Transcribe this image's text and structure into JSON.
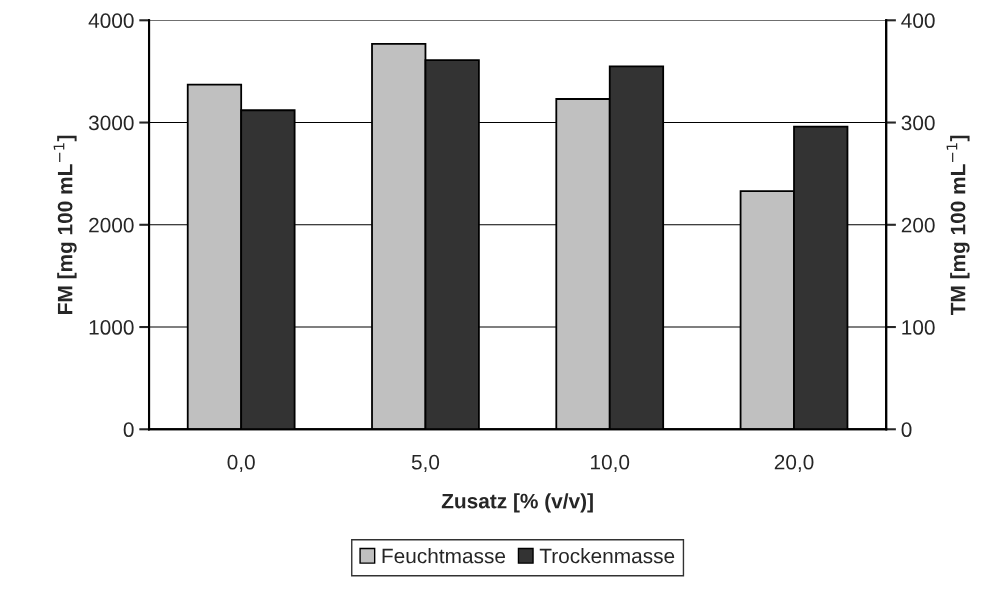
{
  "chart_data": {
    "type": "bar",
    "categories": [
      "0,0",
      "5,0",
      "10,0",
      "20,0"
    ],
    "xlabel": "Zusatz [% (v/v)]",
    "ylabel": "FM [mg 100 mL$^{−1}$]",
    "y2label": "TM [mg 100 mL$^{−1}$]",
    "series": [
      {
        "name": "Feuchtmasse",
        "color": "#c0c0c0",
        "values": [
          3370,
          3770,
          3230,
          2330
        ]
      },
      {
        "name": "Trockenmasse",
        "color": "#333333",
        "values": [
          312,
          361,
          355,
          296
        ],
        "axis": "y2"
      }
    ],
    "ylim": [
      0,
      4000
    ],
    "yticks": [
      0,
      1000,
      2000,
      3000,
      4000
    ],
    "y2lim": [
      0,
      400
    ],
    "y2ticks": [
      0,
      100,
      200,
      300,
      400
    ],
    "grid": "y",
    "legend": "bottom"
  }
}
